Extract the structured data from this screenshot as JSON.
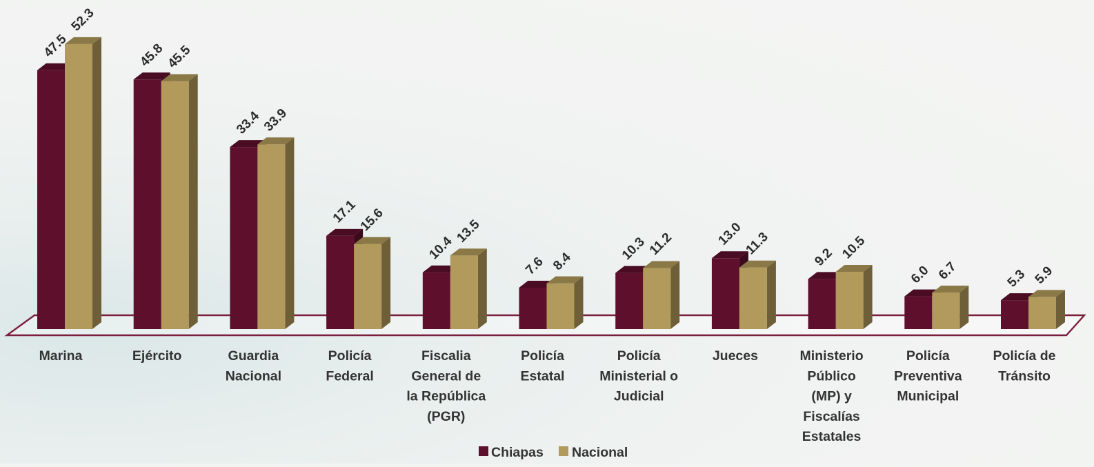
{
  "chart_data": {
    "type": "bar",
    "style": "3d-clustered-column",
    "categories": [
      "Marina",
      "Ejército",
      "Guardia Nacional",
      "Policía Federal",
      "Fiscalia General de la República (PGR)",
      "Policía Estatal",
      "Policía Ministerial o Judicial",
      "Jueces",
      "Ministerio Público (MP) y Fiscalías Estatales",
      "Policía Preventiva Municipal",
      "Policía de Tránsito"
    ],
    "category_label_lines": [
      [
        "Marina"
      ],
      [
        "Ejército"
      ],
      [
        "Guardia",
        "Nacional"
      ],
      [
        "Policía",
        "Federal"
      ],
      [
        "Fiscalia",
        "General de",
        "la República",
        "(PGR)"
      ],
      [
        "Policía",
        "Estatal"
      ],
      [
        "Policía",
        "Ministerial o",
        "Judicial"
      ],
      [
        "Jueces"
      ],
      [
        "Ministerio",
        "Público",
        "(MP) y",
        "Fiscalías",
        "Estatales"
      ],
      [
        "Policía",
        "Preventiva",
        "Municipal"
      ],
      [
        "Policía de",
        "Tránsito"
      ]
    ],
    "series": [
      {
        "name": "Chiapas",
        "color": "#5e0f2b",
        "values": [
          47.5,
          45.8,
          33.4,
          17.1,
          10.4,
          7.6,
          10.3,
          13.0,
          9.2,
          6.0,
          5.3
        ],
        "labels": [
          "47.5",
          "45.8",
          "33.4",
          "17.1",
          "10.4",
          "7.6",
          "10.3",
          "13.0",
          "9.2",
          "6.0",
          "5.3"
        ]
      },
      {
        "name": "Nacional",
        "color": "#b19a5b",
        "values": [
          52.3,
          45.5,
          33.9,
          15.6,
          13.5,
          8.4,
          11.2,
          11.3,
          10.5,
          6.7,
          5.9
        ],
        "labels": [
          "52.3",
          "45.5",
          "33.9",
          "15.6",
          "13.5",
          "8.4",
          "11.2",
          "11.3",
          "10.5",
          "6.7",
          "5.9"
        ]
      }
    ],
    "title": "",
    "xlabel": "",
    "ylabel": "",
    "ylim": [
      0,
      52.3
    ],
    "grid": false,
    "legend_position": "bottom-center",
    "value_axis_visible": false,
    "floor_color": "#7a1f3d"
  }
}
